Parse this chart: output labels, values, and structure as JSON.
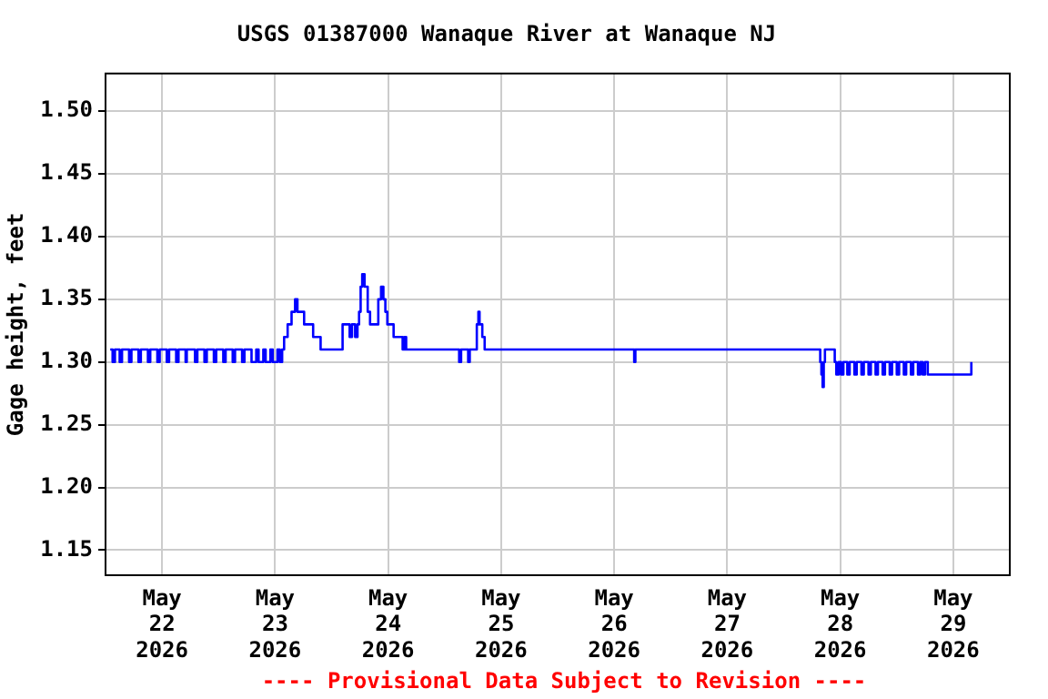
{
  "chart_data": {
    "type": "step",
    "title": "USGS 01387000 Wanaque River at Wanaque NJ",
    "ylabel": "Gage height, feet",
    "annotations": [
      "---- Provisional Data Subject to Revision ----"
    ],
    "xlim": [
      "2026-05-21T12:00",
      "2026-05-29T12:00"
    ],
    "xticks": [
      {
        "value": "2026-05-22T00:00",
        "label": "May 22 2026"
      },
      {
        "value": "2026-05-23T00:00",
        "label": "May 23 2026"
      },
      {
        "value": "2026-05-24T00:00",
        "label": "May 24 2026"
      },
      {
        "value": "2026-05-25T00:00",
        "label": "May 25 2026"
      },
      {
        "value": "2026-05-26T00:00",
        "label": "May 26 2026"
      },
      {
        "value": "2026-05-27T00:00",
        "label": "May 27 2026"
      },
      {
        "value": "2026-05-28T00:00",
        "label": "May 28 2026"
      },
      {
        "value": "2026-05-29T00:00",
        "label": "May 29 2026"
      }
    ],
    "ylim": [
      1.13,
      1.53
    ],
    "yticks": [
      {
        "value": 1.15,
        "label": "1.15"
      },
      {
        "value": 1.2,
        "label": "1.20"
      },
      {
        "value": 1.25,
        "label": "1.25"
      },
      {
        "value": 1.3,
        "label": "1.30"
      },
      {
        "value": 1.35,
        "label": "1.35"
      },
      {
        "value": 1.4,
        "label": "1.40"
      },
      {
        "value": 1.45,
        "label": "1.45"
      },
      {
        "value": 1.5,
        "label": "1.50"
      }
    ],
    "grid": true,
    "legend": false,
    "series": [
      {
        "color": "#0000ff",
        "x": [
          "2026-05-21T13:00",
          "2026-05-21T13:30",
          "2026-05-21T14:00",
          "2026-05-21T15:00",
          "2026-05-21T15:30",
          "2026-05-21T17:00",
          "2026-05-21T17:30",
          "2026-05-21T19:00",
          "2026-05-21T19:30",
          "2026-05-21T21:00",
          "2026-05-21T21:30",
          "2026-05-21T23:00",
          "2026-05-21T23:30",
          "2026-05-22T01:00",
          "2026-05-22T01:30",
          "2026-05-22T03:00",
          "2026-05-22T03:30",
          "2026-05-22T05:00",
          "2026-05-22T05:15",
          "2026-05-22T07:00",
          "2026-05-22T07:30",
          "2026-05-22T09:00",
          "2026-05-22T09:30",
          "2026-05-22T11:00",
          "2026-05-22T11:30",
          "2026-05-22T13:00",
          "2026-05-22T13:30",
          "2026-05-22T15:00",
          "2026-05-22T15:30",
          "2026-05-22T17:00",
          "2026-05-22T17:30",
          "2026-05-22T19:00",
          "2026-05-22T20:00",
          "2026-05-22T20:30",
          "2026-05-22T21:30",
          "2026-05-22T22:00",
          "2026-05-22T23:00",
          "2026-05-22T23:30",
          "2026-05-23T00:30",
          "2026-05-23T01:00",
          "2026-05-23T01:30",
          "2026-05-23T01:55",
          "2026-05-23T02:40",
          "2026-05-23T03:30",
          "2026-05-23T04:15",
          "2026-05-23T04:45",
          "2026-05-23T06:10",
          "2026-05-23T08:05",
          "2026-05-23T09:40",
          "2026-05-23T14:20",
          "2026-05-23T15:50",
          "2026-05-23T16:20",
          "2026-05-23T17:00",
          "2026-05-23T17:30",
          "2026-05-23T17:50",
          "2026-05-23T18:10",
          "2026-05-23T18:30",
          "2026-05-23T19:00",
          "2026-05-23T19:40",
          "2026-05-23T20:10",
          "2026-05-23T21:55",
          "2026-05-23T22:30",
          "2026-05-23T23:00",
          "2026-05-23T23:25",
          "2026-05-23T23:50",
          "2026-05-24T01:10",
          "2026-05-24T03:05",
          "2026-05-24T03:30",
          "2026-05-24T03:50",
          "2026-05-24T15:05",
          "2026-05-24T15:30",
          "2026-05-24T17:00",
          "2026-05-24T17:20",
          "2026-05-24T18:50",
          "2026-05-24T19:10",
          "2026-05-24T19:25",
          "2026-05-24T20:00",
          "2026-05-24T20:30",
          "2026-05-26T04:15",
          "2026-05-26T04:30",
          "2026-05-27T19:45",
          "2026-05-27T20:00",
          "2026-05-27T20:15",
          "2026-05-27T20:30",
          "2026-05-27T20:45",
          "2026-05-27T22:50",
          "2026-05-27T23:10",
          "2026-05-27T23:40",
          "2026-05-28T00:10",
          "2026-05-28T00:40",
          "2026-05-28T01:30",
          "2026-05-28T02:00",
          "2026-05-28T03:00",
          "2026-05-28T03:30",
          "2026-05-28T04:30",
          "2026-05-28T05:00",
          "2026-05-28T06:00",
          "2026-05-28T06:30",
          "2026-05-28T07:30",
          "2026-05-28T08:00",
          "2026-05-28T09:00",
          "2026-05-28T09:30",
          "2026-05-28T10:30",
          "2026-05-28T11:00",
          "2026-05-28T12:00",
          "2026-05-28T12:30",
          "2026-05-28T13:30",
          "2026-05-28T14:00",
          "2026-05-28T15:00",
          "2026-05-28T15:30",
          "2026-05-28T16:30",
          "2026-05-28T17:00",
          "2026-05-28T17:30",
          "2026-05-28T18:00",
          "2026-05-28T18:35",
          "2026-05-29T03:50"
        ],
        "values": [
          1.31,
          1.3,
          1.31,
          1.3,
          1.31,
          1.3,
          1.31,
          1.3,
          1.31,
          1.3,
          1.31,
          1.3,
          1.31,
          1.3,
          1.31,
          1.3,
          1.31,
          1.3,
          1.31,
          1.3,
          1.31,
          1.3,
          1.31,
          1.3,
          1.31,
          1.3,
          1.31,
          1.3,
          1.31,
          1.3,
          1.31,
          1.3,
          1.31,
          1.3,
          1.31,
          1.3,
          1.31,
          1.3,
          1.31,
          1.3,
          1.31,
          1.32,
          1.33,
          1.34,
          1.35,
          1.34,
          1.33,
          1.32,
          1.31,
          1.33,
          1.32,
          1.33,
          1.32,
          1.33,
          1.34,
          1.36,
          1.37,
          1.36,
          1.34,
          1.33,
          1.35,
          1.36,
          1.35,
          1.34,
          1.33,
          1.32,
          1.31,
          1.32,
          1.31,
          1.3,
          1.31,
          1.3,
          1.31,
          1.33,
          1.34,
          1.33,
          1.32,
          1.31,
          1.3,
          1.31,
          1.3,
          1.29,
          1.28,
          1.3,
          1.31,
          1.3,
          1.29,
          1.3,
          1.29,
          1.3,
          1.29,
          1.3,
          1.29,
          1.3,
          1.29,
          1.3,
          1.29,
          1.3,
          1.29,
          1.3,
          1.29,
          1.3,
          1.29,
          1.3,
          1.29,
          1.3,
          1.29,
          1.3,
          1.29,
          1.3,
          1.29,
          1.3,
          1.29,
          1.3,
          1.29,
          1.3
        ]
      }
    ]
  }
}
